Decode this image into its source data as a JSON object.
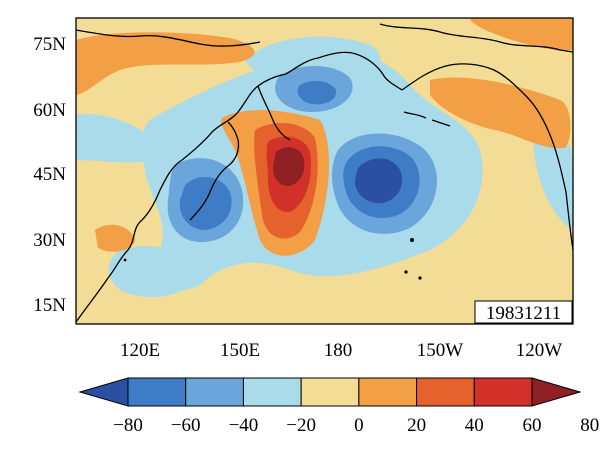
{
  "map": {
    "date_label": "19831211",
    "lat_labels": [
      "75N",
      "60N",
      "45N",
      "30N",
      "15N"
    ],
    "lon_labels": [
      "120E",
      "150E",
      "180",
      "150W",
      "120W"
    ]
  },
  "colorbar": {
    "tick_labels": [
      "−80",
      "−60",
      "−40",
      "−20",
      "0",
      "20",
      "40",
      "60",
      "80"
    ],
    "levels": [
      -80,
      -60,
      -40,
      -20,
      0,
      20,
      40,
      60,
      80
    ],
    "colors": [
      "#2b4fa3",
      "#3f7cc6",
      "#6aa6dc",
      "#aadbeb",
      "#f2dc96",
      "#f29f45",
      "#e6622c",
      "#d2312a",
      "#8f2125"
    ]
  }
}
